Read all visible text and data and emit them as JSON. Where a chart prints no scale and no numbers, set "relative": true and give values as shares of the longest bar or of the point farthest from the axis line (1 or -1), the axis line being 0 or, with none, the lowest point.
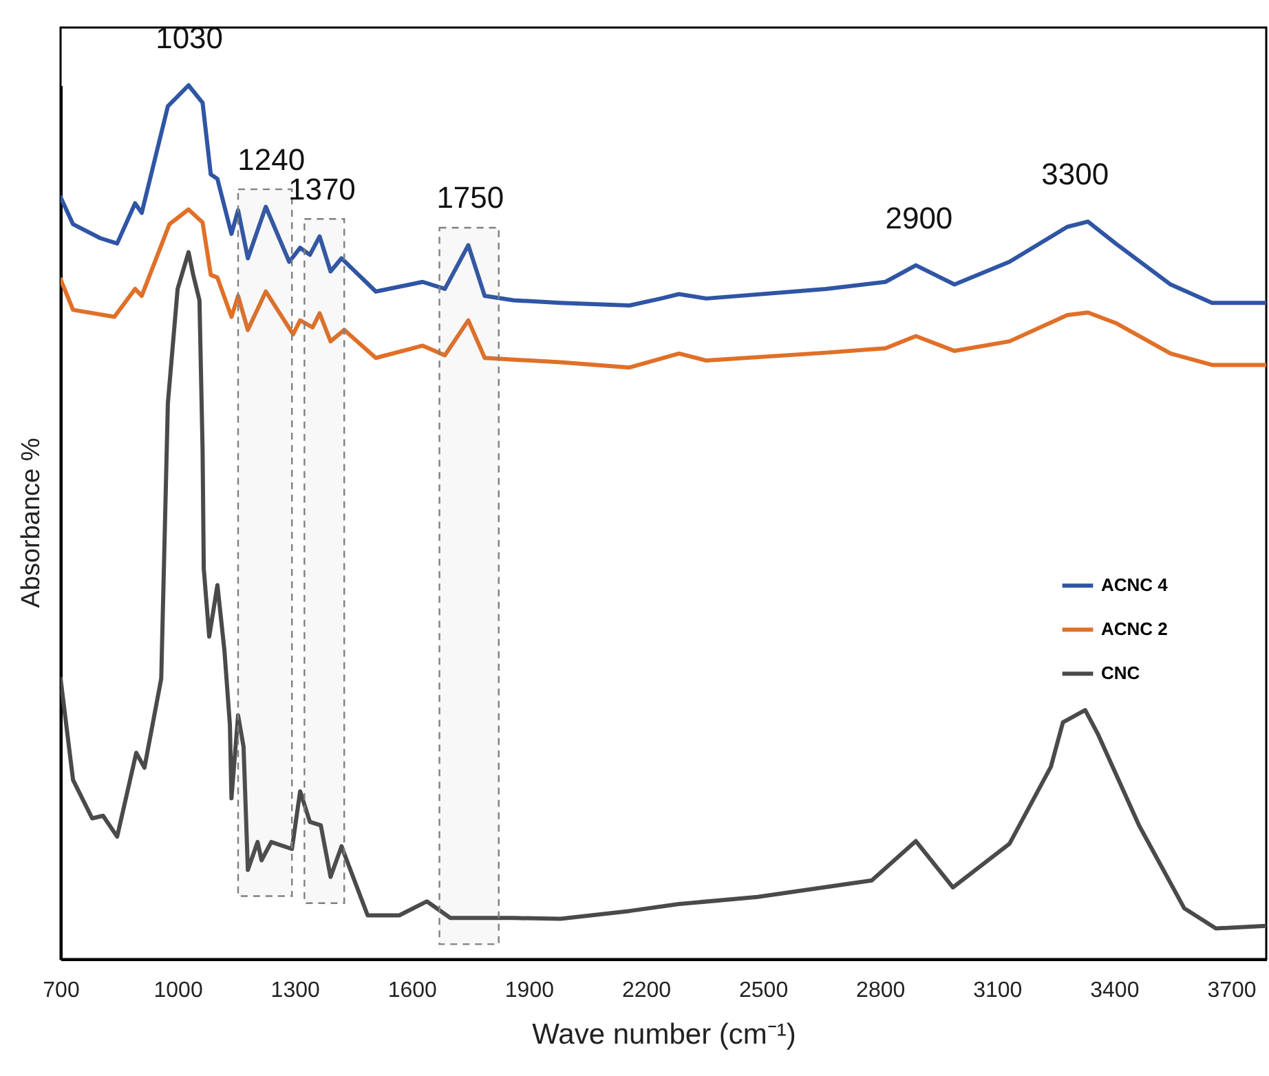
{
  "chart_data": {
    "type": "line",
    "relative": true,
    "xlabel": "Wave number (cm⁻¹)",
    "ylabel": "Absorbance %",
    "xlim": [
      700,
      3790
    ],
    "xticks": [
      700,
      1000,
      1300,
      1600,
      1900,
      2200,
      2500,
      2800,
      3100,
      3400,
      3700
    ],
    "grid": false,
    "legend": "right",
    "line_style": "solid",
    "marker": "none",
    "x": [
      700,
      732,
      802,
      845,
      891,
      908,
      975,
      1028,
      1064,
      1085,
      1102,
      1138,
      1155,
      1180,
      1226,
      1286,
      1314,
      1339,
      1364,
      1392,
      1420,
      1508,
      1628,
      1685,
      1745,
      1787,
      1861,
      1981,
      2158,
      2239,
      2285,
      2355,
      2662,
      2814,
      2892,
      2991,
      3132,
      3280,
      3333,
      3404,
      3545,
      3651,
      3790
    ],
    "series": [
      {
        "name": "ACNC 4",
        "color": "#2f55a4",
        "values": [
          0.872,
          0.841,
          0.825,
          0.819,
          0.865,
          0.854,
          0.976,
          1,
          0.98,
          0.898,
          0.893,
          0.83,
          0.857,
          0.802,
          0.861,
          0.798,
          0.814,
          0.806,
          0.827,
          0.787,
          0.802,
          0.764,
          0.775,
          0.767,
          0.817,
          0.759,
          0.754,
          0.751,
          0.748,
          0.756,
          0.761,
          0.756,
          0.767,
          0.775,
          0.794,
          0.772,
          0.798,
          0.838,
          0.844,
          0.819,
          0.772,
          0.751,
          0.751
        ]
      },
      {
        "name": "ACNC 2",
        "color": "#e07028",
        "x": [
          700,
          732,
          838,
          891,
          908,
          979,
          1028,
          1064,
          1085,
          1102,
          1138,
          1155,
          1180,
          1226,
          1296,
          1314,
          1346,
          1364,
          1392,
          1427,
          1508,
          1628,
          1685,
          1745,
          1787,
          1981,
          2158,
          2285,
          2355,
          2662,
          2814,
          2892,
          2991,
          3132,
          3280,
          3333,
          3404,
          3545,
          3651,
          3790
        ],
        "values": [
          0.778,
          0.743,
          0.735,
          0.767,
          0.759,
          0.841,
          0.858,
          0.843,
          0.783,
          0.78,
          0.735,
          0.759,
          0.72,
          0.764,
          0.715,
          0.731,
          0.723,
          0.739,
          0.707,
          0.72,
          0.688,
          0.702,
          0.691,
          0.731,
          0.688,
          0.683,
          0.677,
          0.693,
          0.685,
          0.694,
          0.699,
          0.713,
          0.696,
          0.707,
          0.737,
          0.74,
          0.728,
          0.693,
          0.68,
          0.68
        ]
      },
      {
        "name": "CNC",
        "color": "#4a4a4a",
        "x": [
          700,
          732,
          781,
          809,
          845,
          894,
          915,
          958,
          975,
          1000,
          1028,
          1040,
          1056,
          1064,
          1067,
          1081,
          1102,
          1120,
          1134,
          1138,
          1155,
          1169,
          1180,
          1205,
          1215,
          1240,
          1293,
          1314,
          1339,
          1367,
          1392,
          1420,
          1487,
          1568,
          1639,
          1699,
          1861,
          1981,
          2158,
          2285,
          2486,
          2779,
          2892,
          2987,
          3132,
          3238,
          3269,
          3326,
          3358,
          3464,
          3580,
          3661,
          3790
        ],
        "values": [
          0.321,
          0.205,
          0.161,
          0.164,
          0.14,
          0.236,
          0.219,
          0.321,
          0.636,
          0.767,
          0.809,
          0.783,
          0.754,
          0.583,
          0.447,
          0.369,
          0.428,
          0.353,
          0.268,
          0.184,
          0.279,
          0.243,
          0.102,
          0.134,
          0.113,
          0.134,
          0.126,
          0.192,
          0.157,
          0.153,
          0.094,
          0.129,
          0.05,
          0.05,
          0.066,
          0.047,
          0.047,
          0.046,
          0.055,
          0.063,
          0.071,
          0.09,
          0.135,
          0.082,
          0.132,
          0.22,
          0.271,
          0.285,
          0.258,
          0.153,
          0.058,
          0.035,
          0.038
        ]
      }
    ],
    "bands": [
      {
        "axis": "x",
        "from": 1155,
        "to": 1293,
        "color": "#808080"
      },
      {
        "axis": "x",
        "from": 1325,
        "to": 1427,
        "color": "#808080"
      },
      {
        "axis": "x",
        "from": 1671,
        "to": 1823,
        "color": "#808080"
      }
    ],
    "annotations": [
      {
        "text": "1030",
        "x": 1030,
        "y": 1
      },
      {
        "text": "1240",
        "x": 1240,
        "y": 0.861
      },
      {
        "text": "1370",
        "x": 1370,
        "y": 0.827
      },
      {
        "text": "1750",
        "x": 1750,
        "y": 0.817
      },
      {
        "text": "2900",
        "x": 2900,
        "y": 0.794
      },
      {
        "text": "3300",
        "x": 3300,
        "y": 0.844
      }
    ]
  }
}
